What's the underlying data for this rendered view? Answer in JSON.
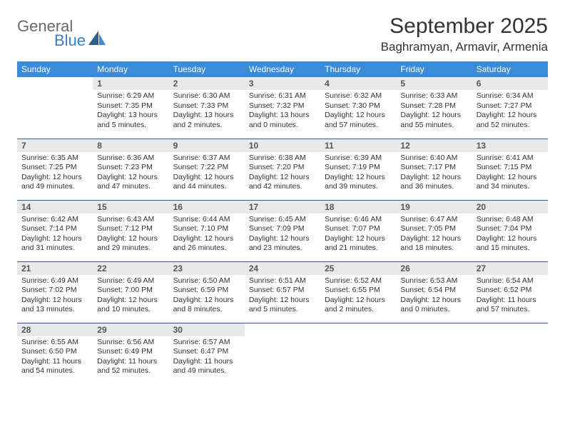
{
  "logo": {
    "word1": "General",
    "word2": "Blue"
  },
  "title": "September 2025",
  "location": "Baghramyan, Armavir, Armenia",
  "colors": {
    "header_bg": "#3a8bd8",
    "header_text": "#ffffff",
    "daynum_bg": "#e9e9e9",
    "row_border": "#2e5f8a",
    "logo_gray": "#6a6a6a",
    "logo_blue": "#3a7fc4"
  },
  "weekdays": [
    "Sunday",
    "Monday",
    "Tuesday",
    "Wednesday",
    "Thursday",
    "Friday",
    "Saturday"
  ],
  "weeks": [
    [
      {
        "n": "",
        "sr": "",
        "ss": "",
        "dl": ""
      },
      {
        "n": "1",
        "sr": "Sunrise: 6:29 AM",
        "ss": "Sunset: 7:35 PM",
        "dl": "Daylight: 13 hours and 5 minutes."
      },
      {
        "n": "2",
        "sr": "Sunrise: 6:30 AM",
        "ss": "Sunset: 7:33 PM",
        "dl": "Daylight: 13 hours and 2 minutes."
      },
      {
        "n": "3",
        "sr": "Sunrise: 6:31 AM",
        "ss": "Sunset: 7:32 PM",
        "dl": "Daylight: 13 hours and 0 minutes."
      },
      {
        "n": "4",
        "sr": "Sunrise: 6:32 AM",
        "ss": "Sunset: 7:30 PM",
        "dl": "Daylight: 12 hours and 57 minutes."
      },
      {
        "n": "5",
        "sr": "Sunrise: 6:33 AM",
        "ss": "Sunset: 7:28 PM",
        "dl": "Daylight: 12 hours and 55 minutes."
      },
      {
        "n": "6",
        "sr": "Sunrise: 6:34 AM",
        "ss": "Sunset: 7:27 PM",
        "dl": "Daylight: 12 hours and 52 minutes."
      }
    ],
    [
      {
        "n": "7",
        "sr": "Sunrise: 6:35 AM",
        "ss": "Sunset: 7:25 PM",
        "dl": "Daylight: 12 hours and 49 minutes."
      },
      {
        "n": "8",
        "sr": "Sunrise: 6:36 AM",
        "ss": "Sunset: 7:23 PM",
        "dl": "Daylight: 12 hours and 47 minutes."
      },
      {
        "n": "9",
        "sr": "Sunrise: 6:37 AM",
        "ss": "Sunset: 7:22 PM",
        "dl": "Daylight: 12 hours and 44 minutes."
      },
      {
        "n": "10",
        "sr": "Sunrise: 6:38 AM",
        "ss": "Sunset: 7:20 PM",
        "dl": "Daylight: 12 hours and 42 minutes."
      },
      {
        "n": "11",
        "sr": "Sunrise: 6:39 AM",
        "ss": "Sunset: 7:19 PM",
        "dl": "Daylight: 12 hours and 39 minutes."
      },
      {
        "n": "12",
        "sr": "Sunrise: 6:40 AM",
        "ss": "Sunset: 7:17 PM",
        "dl": "Daylight: 12 hours and 36 minutes."
      },
      {
        "n": "13",
        "sr": "Sunrise: 6:41 AM",
        "ss": "Sunset: 7:15 PM",
        "dl": "Daylight: 12 hours and 34 minutes."
      }
    ],
    [
      {
        "n": "14",
        "sr": "Sunrise: 6:42 AM",
        "ss": "Sunset: 7:14 PM",
        "dl": "Daylight: 12 hours and 31 minutes."
      },
      {
        "n": "15",
        "sr": "Sunrise: 6:43 AM",
        "ss": "Sunset: 7:12 PM",
        "dl": "Daylight: 12 hours and 29 minutes."
      },
      {
        "n": "16",
        "sr": "Sunrise: 6:44 AM",
        "ss": "Sunset: 7:10 PM",
        "dl": "Daylight: 12 hours and 26 minutes."
      },
      {
        "n": "17",
        "sr": "Sunrise: 6:45 AM",
        "ss": "Sunset: 7:09 PM",
        "dl": "Daylight: 12 hours and 23 minutes."
      },
      {
        "n": "18",
        "sr": "Sunrise: 6:46 AM",
        "ss": "Sunset: 7:07 PM",
        "dl": "Daylight: 12 hours and 21 minutes."
      },
      {
        "n": "19",
        "sr": "Sunrise: 6:47 AM",
        "ss": "Sunset: 7:05 PM",
        "dl": "Daylight: 12 hours and 18 minutes."
      },
      {
        "n": "20",
        "sr": "Sunrise: 6:48 AM",
        "ss": "Sunset: 7:04 PM",
        "dl": "Daylight: 12 hours and 15 minutes."
      }
    ],
    [
      {
        "n": "21",
        "sr": "Sunrise: 6:49 AM",
        "ss": "Sunset: 7:02 PM",
        "dl": "Daylight: 12 hours and 13 minutes."
      },
      {
        "n": "22",
        "sr": "Sunrise: 6:49 AM",
        "ss": "Sunset: 7:00 PM",
        "dl": "Daylight: 12 hours and 10 minutes."
      },
      {
        "n": "23",
        "sr": "Sunrise: 6:50 AM",
        "ss": "Sunset: 6:59 PM",
        "dl": "Daylight: 12 hours and 8 minutes."
      },
      {
        "n": "24",
        "sr": "Sunrise: 6:51 AM",
        "ss": "Sunset: 6:57 PM",
        "dl": "Daylight: 12 hours and 5 minutes."
      },
      {
        "n": "25",
        "sr": "Sunrise: 6:52 AM",
        "ss": "Sunset: 6:55 PM",
        "dl": "Daylight: 12 hours and 2 minutes."
      },
      {
        "n": "26",
        "sr": "Sunrise: 6:53 AM",
        "ss": "Sunset: 6:54 PM",
        "dl": "Daylight: 12 hours and 0 minutes."
      },
      {
        "n": "27",
        "sr": "Sunrise: 6:54 AM",
        "ss": "Sunset: 6:52 PM",
        "dl": "Daylight: 11 hours and 57 minutes."
      }
    ],
    [
      {
        "n": "28",
        "sr": "Sunrise: 6:55 AM",
        "ss": "Sunset: 6:50 PM",
        "dl": "Daylight: 11 hours and 54 minutes."
      },
      {
        "n": "29",
        "sr": "Sunrise: 6:56 AM",
        "ss": "Sunset: 6:49 PM",
        "dl": "Daylight: 11 hours and 52 minutes."
      },
      {
        "n": "30",
        "sr": "Sunrise: 6:57 AM",
        "ss": "Sunset: 6:47 PM",
        "dl": "Daylight: 11 hours and 49 minutes."
      },
      {
        "n": "",
        "sr": "",
        "ss": "",
        "dl": ""
      },
      {
        "n": "",
        "sr": "",
        "ss": "",
        "dl": ""
      },
      {
        "n": "",
        "sr": "",
        "ss": "",
        "dl": ""
      },
      {
        "n": "",
        "sr": "",
        "ss": "",
        "dl": ""
      }
    ]
  ]
}
